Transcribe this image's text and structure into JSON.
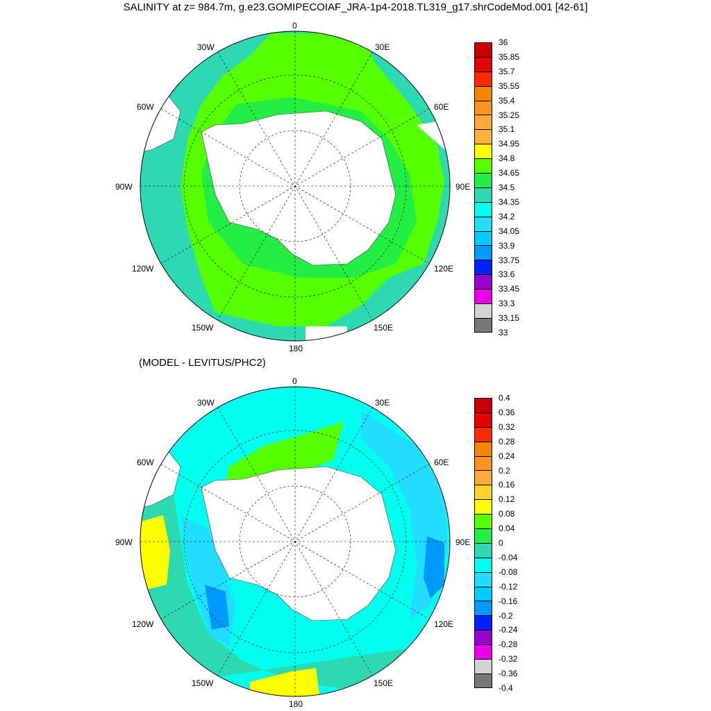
{
  "title": "SALINITY at z= 984.7m, g.e23.GOMIPECOIAF_JRA-1p4-2018.TL319_g17.shrCodeMod.001 [42-61]",
  "subtitle": "(MODEL - LEVITUS/PHC2)",
  "longitude_labels": [
    "0",
    "30E",
    "60E",
    "90E",
    "120E",
    "150E",
    "180",
    "150W",
    "120W",
    "90W",
    "60W",
    "30W"
  ],
  "top_colorbar": {
    "labels": [
      "36",
      "35.85",
      "35.7",
      "35.55",
      "35.4",
      "35.25",
      "35.1",
      "34.95",
      "34.8",
      "34.65",
      "34.5",
      "34.35",
      "34.2",
      "34.05",
      "33.9",
      "33.75",
      "33.6",
      "33.45",
      "33.3",
      "33.15",
      "33"
    ],
    "colors": [
      "#c80000",
      "#e60000",
      "#ff2a00",
      "#f58700",
      "#fc9320",
      "#fda83c",
      "#feb23a",
      "#ffff00",
      "#55ff00",
      "#22ee44",
      "#2cd9b0",
      "#00ffee",
      "#22ddff",
      "#00ccff",
      "#0099ff",
      "#0022ff",
      "#9900cc",
      "#e800e8",
      "#d3d3d3",
      "#777777"
    ]
  },
  "bottom_colorbar": {
    "labels": [
      "0.4",
      "0.36",
      "0.32",
      "0.28",
      "0.24",
      "0.2",
      "0.16",
      "0.12",
      "0.08",
      "0.04",
      "0",
      "-0.04",
      "-0.08",
      "-0.12",
      "-0.16",
      "-0.2",
      "-0.24",
      "-0.28",
      "-0.32",
      "-0.36",
      "-0.4"
    ],
    "colors": [
      "#c80000",
      "#e60000",
      "#ff2a00",
      "#f58700",
      "#fc9320",
      "#fda83c",
      "#ffd42a",
      "#ffff00",
      "#55ff00",
      "#22ee44",
      "#2cd9b0",
      "#00ffee",
      "#22ddff",
      "#00ccff",
      "#0099ff",
      "#0022ff",
      "#9900cc",
      "#e800e8",
      "#d3d3d3",
      "#777777"
    ]
  },
  "colors": {
    "land": "#ffffff",
    "top_green": "#55ff00",
    "top_mid_green": "#22ee44",
    "top_teal": "#2cd9b0",
    "bottom_cyan": "#00ffee",
    "bottom_teal": "#2cd9b0",
    "bottom_lightblue": "#22ddff",
    "bottom_blue": "#0099ff",
    "bottom_yellow": "#ffff00"
  }
}
